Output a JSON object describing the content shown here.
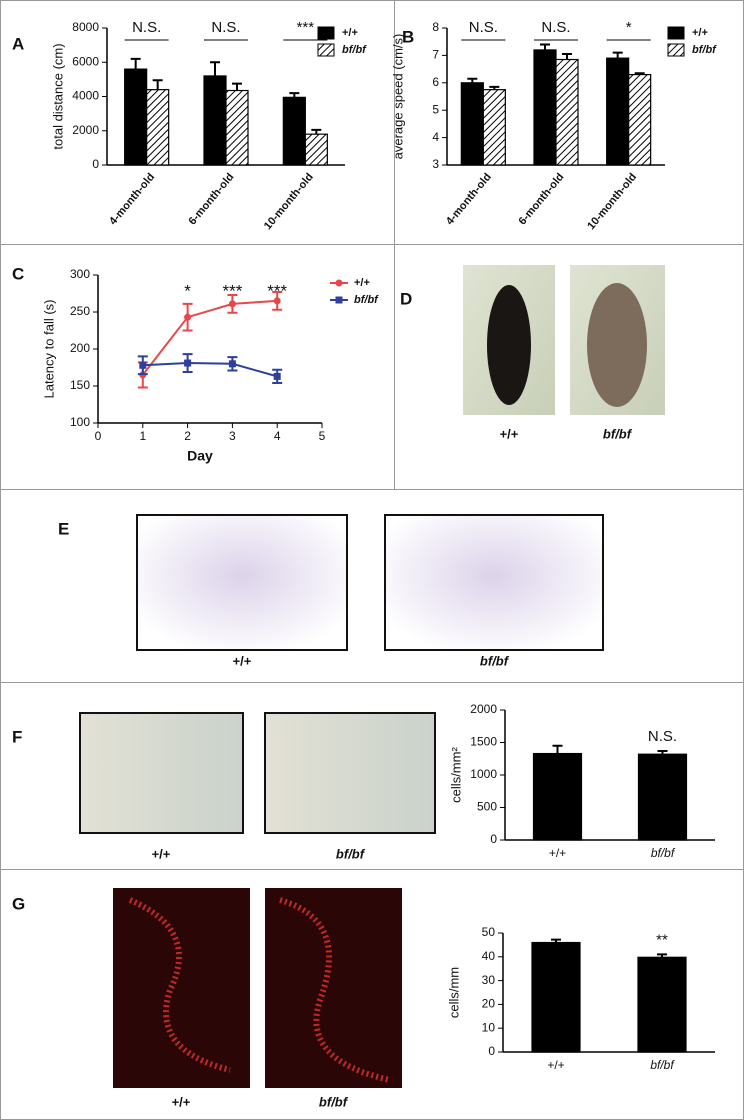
{
  "chart_data": [
    {
      "panel": "A",
      "type": "bar",
      "ylabel": "total distance (cm)",
      "categories": [
        "4-month-old",
        "6-month-old",
        "10-month-old"
      ],
      "series": [
        {
          "name": "+/+",
          "color": "#000000",
          "values": [
            5600,
            5200,
            3950
          ],
          "errors": [
            600,
            800,
            250
          ]
        },
        {
          "name": "bf/bf",
          "color": "#ffffff",
          "hatch": true,
          "values": [
            4400,
            4350,
            1800
          ],
          "errors": [
            550,
            400,
            250
          ]
        }
      ],
      "annotations": [
        "N.S.",
        "N.S.",
        "***"
      ],
      "ylim": [
        0,
        8000
      ],
      "yticks": [
        0,
        2000,
        4000,
        6000,
        8000
      ],
      "legend": "upper right"
    },
    {
      "panel": "B",
      "type": "bar",
      "ylabel": "average speed (cm/s)",
      "categories": [
        "4-month-old",
        "6-month-old",
        "10-month-old"
      ],
      "series": [
        {
          "name": "+/+",
          "color": "#000000",
          "values": [
            6.0,
            7.2,
            6.9
          ],
          "errors": [
            0.15,
            0.2,
            0.2
          ]
        },
        {
          "name": "bf/bf",
          "color": "#ffffff",
          "hatch": true,
          "values": [
            5.75,
            6.85,
            6.3
          ],
          "errors": [
            0.1,
            0.2,
            0.05
          ]
        }
      ],
      "annotations": [
        "N.S.",
        "N.S.",
        "*"
      ],
      "ylim": [
        3,
        8
      ],
      "yticks": [
        3,
        4,
        5,
        6,
        7,
        8
      ],
      "legend": "upper right"
    },
    {
      "panel": "C",
      "type": "line",
      "xlabel": "Day",
      "ylabel": "Latency to fall (s)",
      "x": [
        1,
        2,
        3,
        4
      ],
      "series": [
        {
          "name": "+/+",
          "color": "#e8474a",
          "marker": "circle",
          "values": [
            165,
            243,
            261,
            265
          ],
          "errors": [
            17,
            18,
            12,
            12
          ]
        },
        {
          "name": "bf/bf",
          "color": "#2e3f9c",
          "marker": "square",
          "values": [
            178,
            181,
            180,
            163
          ],
          "errors": [
            12,
            12,
            9,
            9
          ]
        }
      ],
      "annotations": [
        null,
        "*",
        "***",
        "***"
      ],
      "xlim": [
        0,
        5
      ],
      "xticks": [
        0,
        1,
        2,
        3,
        4,
        5
      ],
      "ylim": [
        100,
        300
      ],
      "yticks": [
        100,
        150,
        200,
        250,
        300
      ],
      "legend": "right"
    },
    {
      "panel": "F",
      "type": "bar",
      "ylabel": "cells/mm²",
      "categories": [
        "+/+",
        "bf/bf"
      ],
      "series": [
        {
          "color": "#000000",
          "values": [
            1330,
            1320
          ],
          "errors": [
            120,
            50
          ]
        }
      ],
      "annotations": [
        null,
        "N.S."
      ],
      "ylim": [
        0,
        2000
      ],
      "yticks": [
        0,
        500,
        1000,
        1500,
        2000
      ]
    },
    {
      "panel": "G",
      "type": "bar",
      "ylabel": "cells/mm",
      "categories": [
        "+/+",
        "bf/bf"
      ],
      "series": [
        {
          "color": "#000000",
          "values": [
            46,
            39.8
          ],
          "errors": [
            1.2,
            1.2
          ]
        }
      ],
      "annotations": [
        null,
        "**"
      ],
      "ylim": [
        0,
        50
      ],
      "yticks": [
        0,
        10,
        20,
        30,
        40,
        50
      ]
    }
  ],
  "images": [
    {
      "panel": "D",
      "captions": [
        "+/+",
        "bf/bf"
      ]
    },
    {
      "panel": "E",
      "captions": [
        "+/+",
        "bf/bf"
      ]
    },
    {
      "captions": [
        "+/+",
        "bf/bf"
      ]
    },
    {
      "captions": [
        "+/+",
        "bf/bf"
      ]
    }
  ]
}
